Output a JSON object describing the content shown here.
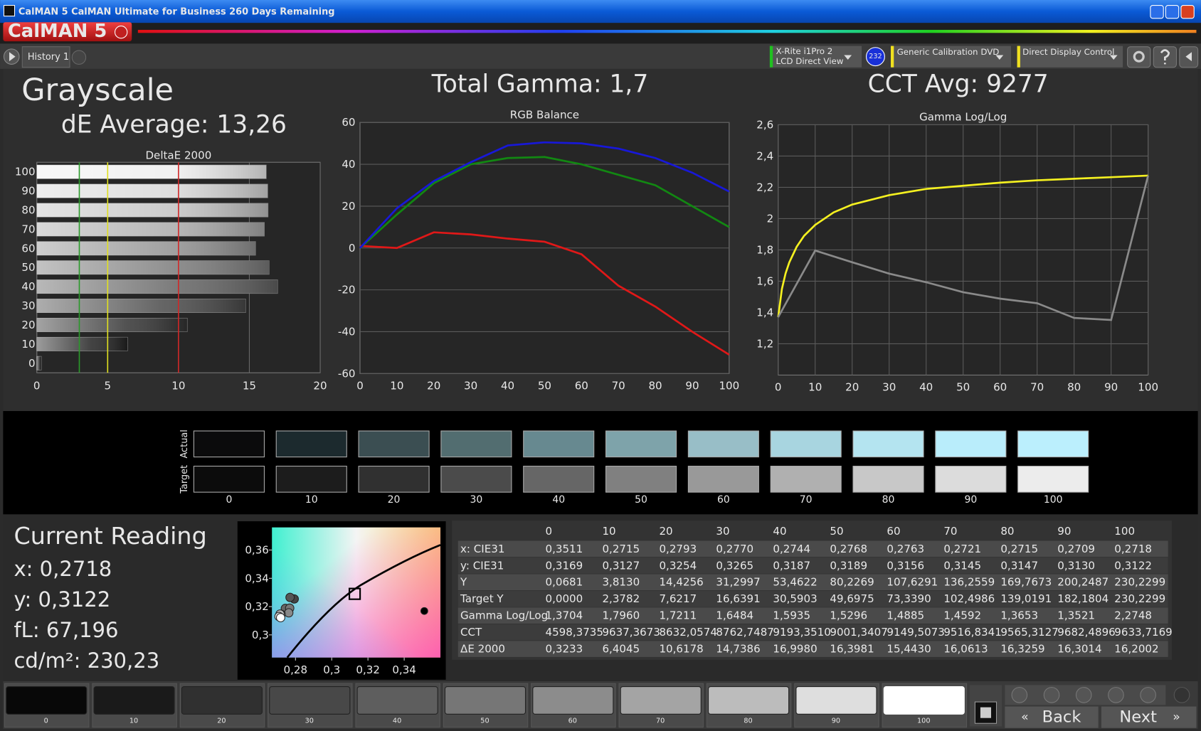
{
  "window": {
    "title": "CalMAN 5 CalMAN Ultimate for Business 260 Days Remaining"
  },
  "header": {
    "logo": "CalMAN 5",
    "tab": "History 1",
    "meter": [
      "X-Rite i1Pro 2",
      "LCD Direct View"
    ],
    "badge": "232",
    "source": "Generic Calibration DVD",
    "display": "Direct Display Control"
  },
  "summary": {
    "title": "Grayscale",
    "de_average": "dE Average: 13,26",
    "total_gamma": "Total Gamma: 1,7",
    "cct_avg": "CCT Avg: 9277"
  },
  "levels": [
    "0",
    "10",
    "20",
    "30",
    "40",
    "50",
    "60",
    "70",
    "80",
    "90",
    "100"
  ],
  "deltae_chart": {
    "type": "bar",
    "title": "DeltaE 2000",
    "values": [
      0.3233,
      6.4045,
      10.6178,
      14.7386,
      16.998,
      16.3981,
      15.443,
      16.0613,
      16.3259,
      16.3014,
      16.2002
    ],
    "colors": [
      "#1a1a1a",
      "#222222",
      "#333333",
      "#4a4a4a",
      "#626262",
      "#7a7a7a",
      "#929292",
      "#aaaaaa",
      "#c2c2c2",
      "#d8d8d8",
      "#eeeeee"
    ],
    "xlim": [
      0,
      20
    ],
    "xticks": [
      0,
      5,
      10,
      15,
      20
    ],
    "thresholds": [
      {
        "value": 3,
        "color": "#2a9a2a"
      },
      {
        "value": 5,
        "color": "#e0e020"
      },
      {
        "value": 10,
        "color": "#d02828"
      }
    ]
  },
  "rgb_chart": {
    "type": "line",
    "title": "RGB Balance",
    "grid": "y",
    "x": [
      0,
      10,
      20,
      30,
      40,
      50,
      60,
      70,
      80,
      90,
      100
    ],
    "xlim": [
      0,
      100
    ],
    "xticks": [
      0,
      10,
      20,
      30,
      40,
      50,
      60,
      70,
      80,
      90,
      100
    ],
    "ylim": [
      -60,
      60
    ],
    "yticks": [
      -60,
      -40,
      -20,
      0,
      20,
      40,
      60
    ],
    "series": [
      {
        "color": "#e01818",
        "values": [
          1,
          0,
          7.5,
          6.5,
          4.5,
          3,
          -3,
          -18,
          -28,
          -40,
          -51
        ]
      },
      {
        "color": "#128812",
        "values": [
          0,
          16,
          31,
          40,
          43,
          43.5,
          40,
          35,
          30,
          20,
          10
        ]
      },
      {
        "color": "#1818d8",
        "values": [
          0,
          19,
          32,
          41,
          49,
          50.5,
          50,
          47.5,
          43,
          36,
          27
        ]
      }
    ]
  },
  "gamma_chart": {
    "type": "line",
    "title": "Gamma Log/Log",
    "grid": "both",
    "xlim": [
      0,
      100
    ],
    "xticks": [
      0,
      10,
      20,
      30,
      40,
      50,
      60,
      70,
      80,
      90,
      100
    ],
    "ylim": [
      1,
      2.6
    ],
    "yticks": [
      {
        "value": 1.2,
        "label": "1,2"
      },
      {
        "value": 1.4,
        "label": "1,4"
      },
      {
        "value": 1.6,
        "label": "1,6"
      },
      {
        "value": 1.8,
        "label": "1,8"
      },
      2,
      {
        "value": 2.2,
        "label": "2,2"
      },
      {
        "value": 2.4,
        "label": "2,4"
      },
      {
        "value": 2.6,
        "label": "2,6"
      }
    ],
    "series": [
      {
        "color": "#f4f020",
        "x": [
          0,
          1,
          2,
          3,
          5,
          7,
          10,
          15,
          20,
          30,
          40,
          50,
          60,
          70,
          80,
          90,
          100
        ],
        "values": [
          1.37,
          1.55,
          1.65,
          1.72,
          1.82,
          1.89,
          1.96,
          2.04,
          2.09,
          2.15,
          2.19,
          2.21,
          2.23,
          2.245,
          2.255,
          2.265,
          2.275
        ]
      },
      {
        "color": "#8a8a8a",
        "x": [
          0,
          10,
          20,
          30,
          40,
          50,
          60,
          70,
          80,
          90,
          100
        ],
        "values": [
          1.3704,
          1.796,
          1.7211,
          1.6484,
          1.5935,
          1.5296,
          1.4885,
          1.4592,
          1.3653,
          1.3521,
          2.2748
        ]
      }
    ]
  },
  "swatches": {
    "actual_label": "Actual",
    "target_label": "Target",
    "actual_colors": [
      "#0b0b0c",
      "#1c2a2e",
      "#3b4e52",
      "#526d70",
      "#678990",
      "#7ea3aa",
      "#98bec7",
      "#a8d5e0",
      "#b4e4f0",
      "#b9edfb",
      "#bbeffd"
    ],
    "target_colors": [
      "#0c0c0c",
      "#1c1c1c",
      "#303030",
      "#4b4b4b",
      "#666666",
      "#808080",
      "#999999",
      "#b0b0b0",
      "#c8c8c8",
      "#dcdcdc",
      "#ececec"
    ]
  },
  "current_reading": {
    "title": "Current Reading",
    "x": "x: 0,2718",
    "y": "y: 0,3122",
    "fl": "fL: 67,196",
    "cdm2": "cd/m²: 230,23"
  },
  "cie_chart": {
    "type": "scatter",
    "xlim": [
      0.267,
      0.36
    ],
    "ylim": [
      0.284,
      0.376
    ],
    "xticks": [
      {
        "value": 0.28,
        "label": "0,28"
      },
      {
        "value": 0.3,
        "label": "0,3"
      },
      {
        "value": 0.32,
        "label": "0,32"
      },
      {
        "value": 0.34,
        "label": "0,34"
      }
    ],
    "yticks": [
      {
        "value": 0.3,
        "label": "0,3"
      },
      {
        "value": 0.32,
        "label": "0,32"
      },
      {
        "value": 0.34,
        "label": "0,34"
      },
      {
        "value": 0.36,
        "label": "0,36"
      }
    ],
    "x": [
      0.3511,
      0.2715,
      0.2793,
      0.277,
      0.2744,
      0.2768,
      0.2763,
      0.2721,
      0.2715,
      0.2709,
      0.2718
    ],
    "y": [
      0.3169,
      0.3127,
      0.3254,
      0.3265,
      0.3187,
      0.3189,
      0.3156,
      0.3145,
      0.3147,
      0.313,
      0.3122
    ],
    "colors": [
      "#000000",
      "#333333",
      "#444444",
      "#555555",
      "#666666",
      "#777777",
      "#888888",
      "#999999",
      "#bbbbbb",
      "#dddddd",
      "#ffffff"
    ],
    "target": {
      "x": 0.3127,
      "y": 0.329
    }
  },
  "table": {
    "rows": [
      {
        "label": "x: CIE31",
        "values": [
          "0,3511",
          "0,2715",
          "0,2793",
          "0,2770",
          "0,2744",
          "0,2768",
          "0,2763",
          "0,2721",
          "0,2715",
          "0,2709",
          "0,2718"
        ]
      },
      {
        "label": "y: CIE31",
        "values": [
          "0,3169",
          "0,3127",
          "0,3254",
          "0,3265",
          "0,3187",
          "0,3189",
          "0,3156",
          "0,3145",
          "0,3147",
          "0,3130",
          "0,3122"
        ]
      },
      {
        "label": "Y",
        "values": [
          "0,0681",
          "3,8130",
          "14,4256",
          "31,2997",
          "53,4622",
          "80,2269",
          "107,6291",
          "136,2559",
          "169,7673",
          "200,2487",
          "230,2299"
        ]
      },
      {
        "label": "Target Y",
        "values": [
          "0,0000",
          "2,3782",
          "7,6217",
          "16,6391",
          "30,5903",
          "49,6975",
          "73,3390",
          "102,4986",
          "139,0191",
          "182,1804",
          "230,2299"
        ]
      },
      {
        "label": "Gamma Log/Log",
        "values": [
          "1,3704",
          "1,7960",
          "1,7211",
          "1,6484",
          "1,5935",
          "1,5296",
          "1,4885",
          "1,4592",
          "1,3653",
          "1,3521",
          "2,2748"
        ]
      },
      {
        "label": "CCT",
        "values": [
          "4598,3735",
          "9637,3673",
          "8632,0574",
          "8762,7487",
          "9193,3510",
          "9001,3407",
          "9149,5073",
          "9516,8341",
          "9565,3127",
          "9682,4896",
          "9633,7169"
        ]
      },
      {
        "label": "ΔE 2000",
        "values": [
          "0,3233",
          "6,4045",
          "10,6178",
          "14,7386",
          "16,9980",
          "16,3981",
          "15,4430",
          "16,0613",
          "16,3259",
          "16,3014",
          "16,2002"
        ]
      }
    ]
  },
  "patches": {
    "colors": [
      "#080808",
      "#1a1a1a",
      "#303030",
      "#484848",
      "#5e5e5e",
      "#767676",
      "#8c8c8c",
      "#a4a4a4",
      "#bcbcbc",
      "#dedede",
      "#ffffff"
    ],
    "selected": 10
  },
  "nav": {
    "back": "Back",
    "next": "Next"
  }
}
